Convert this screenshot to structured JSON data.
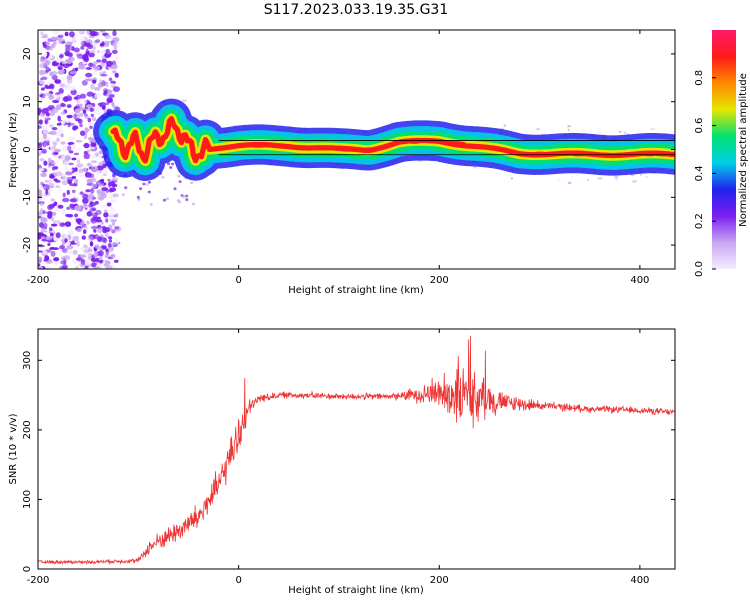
{
  "page_title": "S117.2023.033.19.35.G31",
  "colors": {
    "snr_line": "#ee3333",
    "center_line": "#000000",
    "colormap": [
      "#f4ecff",
      "#c9a6f2",
      "#7a1ff0",
      "#2222ee",
      "#00d0e8",
      "#00e070",
      "#e6e600",
      "#ff8800",
      "#ff1a1a",
      "#ff1a6a"
    ]
  },
  "chart_data": [
    {
      "type": "heatmap",
      "title": "S117.2023.033.19.35.G31",
      "xlabel": "Height of straight line (km)",
      "ylabel": "Frequency (Hz)",
      "xlim": [
        -200,
        435
      ],
      "ylim": [
        -25,
        25
      ],
      "xticks": [
        -200,
        0,
        200,
        400
      ],
      "yticks": [
        -20,
        -10,
        0,
        10,
        20
      ],
      "colorbar": {
        "label": "Normalized spectral amplitude",
        "range": [
          0,
          1
        ],
        "ticks": [
          "0.0",
          "0.2",
          "0.4",
          "0.6",
          "0.8"
        ]
      },
      "ridge": {
        "x": [
          -125,
          -115,
          -105,
          -95,
          -85,
          -75,
          -65,
          -55,
          -45,
          -35,
          -20,
          0,
          50,
          100,
          130,
          160,
          200,
          240,
          280,
          330,
          380,
          435
        ],
        "frequency": [
          3,
          0,
          2,
          -1,
          2,
          3,
          5,
          3,
          -1,
          0,
          0.5,
          0.8,
          0.8,
          0,
          0,
          1.5,
          1.8,
          0.5,
          -0.8,
          -1.0,
          -1.0,
          -1.0
        ]
      },
      "noise_region": {
        "x_from": -200,
        "x_to": -120
      }
    },
    {
      "type": "line",
      "xlabel": "Height of straight line (km)",
      "ylabel": "SNR (10 * v/v)",
      "xlim": [
        -200,
        435
      ],
      "ylim": [
        0,
        345
      ],
      "xticks": [
        -200,
        0,
        200,
        400
      ],
      "yticks": [
        0,
        100,
        200,
        300
      ],
      "series": [
        {
          "x": [
            -200,
            -150,
            -100,
            -90,
            -80,
            -60,
            -40,
            -20,
            -5,
            5,
            10,
            20,
            40,
            60,
            100,
            150,
            170,
            200,
            220,
            240,
            260,
            300,
            350,
            400,
            435
          ],
          "y": [
            10,
            10,
            12,
            30,
            40,
            55,
            75,
            120,
            175,
            210,
            230,
            245,
            250,
            250,
            248,
            248,
            250,
            255,
            250,
            245,
            240,
            235,
            230,
            228,
            225
          ],
          "amplitude": [
            3,
            3,
            4,
            12,
            15,
            20,
            25,
            30,
            30,
            25,
            15,
            8,
            6,
            6,
            6,
            6,
            10,
            30,
            60,
            45,
            20,
            8,
            6,
            6,
            6
          ]
        }
      ]
    }
  ]
}
